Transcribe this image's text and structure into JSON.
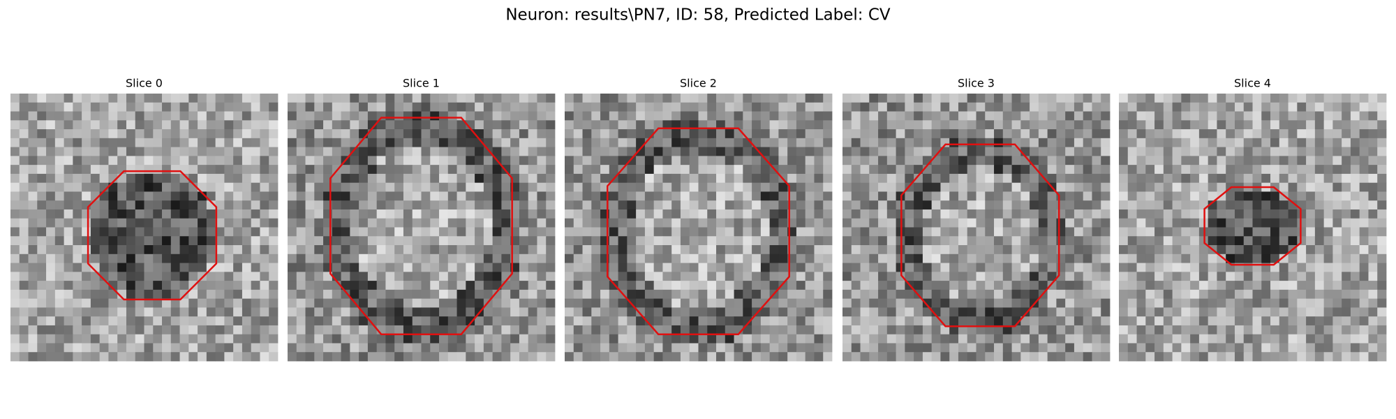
{
  "figure": {
    "title": "Neuron: results\\PN7, ID: 58, Predicted Label: CV",
    "panels": [
      {
        "title": "Slice 0"
      },
      {
        "title": "Slice 1"
      },
      {
        "title": "Slice 2"
      },
      {
        "title": "Slice 3"
      },
      {
        "title": "Slice 4"
      }
    ]
  }
}
